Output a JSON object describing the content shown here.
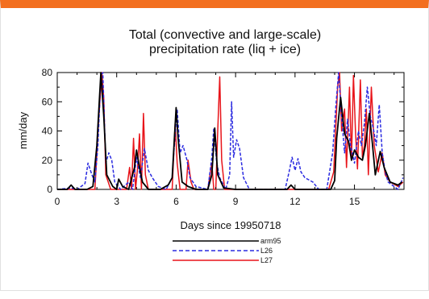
{
  "colors": {
    "header_bar": "#f36f1f",
    "series_arm95": "#000000",
    "series_L26": "#2a2ae0",
    "series_L27": "#e8141a"
  },
  "chart_data": {
    "type": "line",
    "title_line1": "Total (convective and large-scale)",
    "title_line2": "precipitation rate (liq + ice)",
    "xlabel": "Days since 19950718",
    "ylabel": "mm/day",
    "xlim": [
      0,
      17.5
    ],
    "ylim": [
      0,
      80
    ],
    "xticks": [
      0,
      3,
      6,
      9,
      12,
      15
    ],
    "yticks": [
      0,
      20,
      40,
      60,
      80
    ],
    "grid": false,
    "legend_placement": "bottom-right",
    "series": [
      {
        "name": "arm95",
        "style": "solid",
        "points": [
          [
            0,
            0
          ],
          [
            0.5,
            0
          ],
          [
            0.7,
            3
          ],
          [
            0.9,
            0
          ],
          [
            1.5,
            0
          ],
          [
            1.8,
            2
          ],
          [
            2.0,
            30
          ],
          [
            2.2,
            80
          ],
          [
            2.35,
            50
          ],
          [
            2.5,
            10
          ],
          [
            2.8,
            2
          ],
          [
            3.0,
            0
          ],
          [
            3.1,
            7
          ],
          [
            3.3,
            2
          ],
          [
            3.6,
            0
          ],
          [
            3.9,
            15
          ],
          [
            4.0,
            27
          ],
          [
            4.15,
            15
          ],
          [
            4.3,
            5
          ],
          [
            4.6,
            0
          ],
          [
            5.2,
            0
          ],
          [
            5.6,
            3
          ],
          [
            5.8,
            8
          ],
          [
            6.0,
            56
          ],
          [
            6.1,
            35
          ],
          [
            6.3,
            5
          ],
          [
            6.6,
            2
          ],
          [
            7.0,
            0
          ],
          [
            7.6,
            0
          ],
          [
            7.8,
            10
          ],
          [
            7.95,
            42
          ],
          [
            8.1,
            10
          ],
          [
            8.4,
            1
          ],
          [
            9.0,
            0
          ],
          [
            11.6,
            0
          ],
          [
            11.8,
            3
          ],
          [
            12.0,
            0
          ],
          [
            13.8,
            0
          ],
          [
            14.0,
            6
          ],
          [
            14.1,
            35
          ],
          [
            14.3,
            63
          ],
          [
            14.5,
            38
          ],
          [
            14.7,
            33
          ],
          [
            14.85,
            20
          ],
          [
            15.0,
            27
          ],
          [
            15.2,
            22
          ],
          [
            15.4,
            20
          ],
          [
            15.55,
            30
          ],
          [
            15.75,
            52
          ],
          [
            15.9,
            32
          ],
          [
            16.05,
            10
          ],
          [
            16.3,
            26
          ],
          [
            16.5,
            15
          ],
          [
            16.8,
            5
          ],
          [
            17.2,
            3
          ],
          [
            17.4,
            5
          ]
        ]
      },
      {
        "name": "L26",
        "style": "dashed",
        "points": [
          [
            0,
            0
          ],
          [
            0.7,
            1
          ],
          [
            1.0,
            0
          ],
          [
            1.4,
            4
          ],
          [
            1.55,
            18
          ],
          [
            1.75,
            10
          ],
          [
            1.9,
            5
          ],
          [
            2.05,
            30
          ],
          [
            2.2,
            78
          ],
          [
            2.3,
            80
          ],
          [
            2.45,
            18
          ],
          [
            2.6,
            25
          ],
          [
            2.75,
            20
          ],
          [
            2.9,
            5
          ],
          [
            3.2,
            0
          ],
          [
            3.6,
            5
          ],
          [
            3.8,
            0
          ],
          [
            4.0,
            22
          ],
          [
            4.2,
            8
          ],
          [
            4.4,
            28
          ],
          [
            4.6,
            13
          ],
          [
            4.8,
            8
          ],
          [
            5.1,
            2
          ],
          [
            5.5,
            0
          ],
          [
            5.8,
            8
          ],
          [
            5.95,
            38
          ],
          [
            6.05,
            55
          ],
          [
            6.2,
            25
          ],
          [
            6.35,
            30
          ],
          [
            6.55,
            20
          ],
          [
            6.7,
            8
          ],
          [
            7.0,
            2
          ],
          [
            7.6,
            0
          ],
          [
            7.8,
            22
          ],
          [
            7.9,
            42
          ],
          [
            8.05,
            18
          ],
          [
            8.2,
            8
          ],
          [
            8.5,
            0
          ],
          [
            8.7,
            10
          ],
          [
            8.8,
            60
          ],
          [
            8.9,
            22
          ],
          [
            9.05,
            34
          ],
          [
            9.2,
            28
          ],
          [
            9.4,
            8
          ],
          [
            9.7,
            0
          ],
          [
            11.5,
            0
          ],
          [
            11.7,
            12
          ],
          [
            11.85,
            22
          ],
          [
            12.0,
            13
          ],
          [
            12.15,
            21
          ],
          [
            12.3,
            12
          ],
          [
            12.5,
            8
          ],
          [
            12.9,
            5
          ],
          [
            13.2,
            0
          ],
          [
            13.6,
            0
          ],
          [
            13.9,
            25
          ],
          [
            14.05,
            55
          ],
          [
            14.2,
            80
          ],
          [
            14.35,
            50
          ],
          [
            14.5,
            25
          ],
          [
            14.65,
            48
          ],
          [
            14.8,
            30
          ],
          [
            15.0,
            18
          ],
          [
            15.2,
            40
          ],
          [
            15.35,
            30
          ],
          [
            15.5,
            45
          ],
          [
            15.65,
            70
          ],
          [
            15.8,
            50
          ],
          [
            15.95,
            42
          ],
          [
            16.1,
            30
          ],
          [
            16.25,
            58
          ],
          [
            16.4,
            25
          ],
          [
            16.55,
            12
          ],
          [
            16.7,
            5
          ],
          [
            17.0,
            2
          ],
          [
            17.2,
            0
          ],
          [
            17.45,
            8
          ]
        ]
      },
      {
        "name": "L27",
        "style": "solid",
        "points": [
          [
            0,
            0
          ],
          [
            1.9,
            0
          ],
          [
            2.1,
            50
          ],
          [
            2.25,
            80
          ],
          [
            2.35,
            62
          ],
          [
            2.45,
            10
          ],
          [
            2.7,
            0
          ],
          [
            3.5,
            0
          ],
          [
            3.65,
            15
          ],
          [
            3.75,
            0
          ],
          [
            3.85,
            35
          ],
          [
            3.95,
            0
          ],
          [
            4.05,
            14
          ],
          [
            4.15,
            38
          ],
          [
            4.25,
            0
          ],
          [
            4.35,
            52
          ],
          [
            4.45,
            10
          ],
          [
            4.6,
            0
          ],
          [
            5.8,
            0
          ],
          [
            5.95,
            45
          ],
          [
            6.05,
            18
          ],
          [
            6.2,
            0
          ],
          [
            6.5,
            0
          ],
          [
            6.6,
            20
          ],
          [
            6.75,
            5
          ],
          [
            6.9,
            0
          ],
          [
            7.6,
            0
          ],
          [
            7.8,
            18
          ],
          [
            7.9,
            0
          ],
          [
            8.0,
            0
          ],
          [
            8.1,
            40
          ],
          [
            8.2,
            77
          ],
          [
            8.3,
            20
          ],
          [
            8.45,
            0
          ],
          [
            13.7,
            0
          ],
          [
            13.95,
            12
          ],
          [
            14.05,
            40
          ],
          [
            14.15,
            70
          ],
          [
            14.25,
            80
          ],
          [
            14.35,
            40
          ],
          [
            14.5,
            55
          ],
          [
            14.6,
            15
          ],
          [
            14.75,
            70
          ],
          [
            14.85,
            20
          ],
          [
            14.95,
            78
          ],
          [
            15.05,
            40
          ],
          [
            15.15,
            14
          ],
          [
            15.3,
            75
          ],
          [
            15.4,
            22
          ],
          [
            15.5,
            30
          ],
          [
            15.6,
            55
          ],
          [
            15.7,
            10
          ],
          [
            15.85,
            70
          ],
          [
            16.0,
            30
          ],
          [
            16.2,
            12
          ],
          [
            16.4,
            25
          ],
          [
            16.55,
            10
          ],
          [
            16.8,
            5
          ],
          [
            17.2,
            2
          ],
          [
            17.45,
            5
          ]
        ]
      }
    ]
  }
}
